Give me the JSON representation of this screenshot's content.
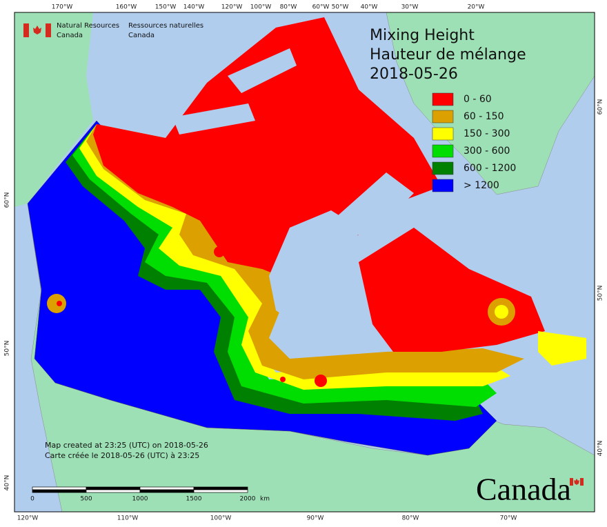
{
  "header": {
    "agency_en": [
      "Natural Resources",
      "Canada"
    ],
    "agency_fr": [
      "Ressources naturelles",
      "Canada"
    ]
  },
  "title": [
    "Mixing Height",
    "Hauteur de mélange",
    "2018-05-26"
  ],
  "legend": [
    {
      "label": "0 - 60",
      "color": "#ff0000"
    },
    {
      "label": "60 - 150",
      "color": "#dca000"
    },
    {
      "label": "150 - 300",
      "color": "#ffff00"
    },
    {
      "label": "300 - 600",
      "color": "#00dd00"
    },
    {
      "label": "600 - 1200",
      "color": "#008000"
    },
    {
      "label": "> 1200",
      "color": "#0000ff"
    }
  ],
  "graticule": {
    "top": [
      "170°W",
      "160°W",
      "150°W",
      "140°W",
      "120°W",
      "100°W",
      "80°W",
      "60°W",
      "50°W",
      "40°W",
      "30°W",
      "20°W"
    ],
    "bottom": [
      "120°W",
      "110°W",
      "100°W",
      "90°W",
      "80°W",
      "70°W"
    ],
    "left": [
      "60°N",
      "50°N",
      "40°N"
    ],
    "right": [
      "60°N",
      "50°N",
      "40°N"
    ]
  },
  "credits": [
    "Map created at 23:25 (UTC) on 2018-05-26",
    "Carte créée le 2018-05-26 (UTC) à 23:25"
  ],
  "scale_bar": {
    "labels": [
      0,
      500,
      1000,
      1500,
      2000
    ],
    "unit": "km"
  },
  "wordmark": "Canada"
}
